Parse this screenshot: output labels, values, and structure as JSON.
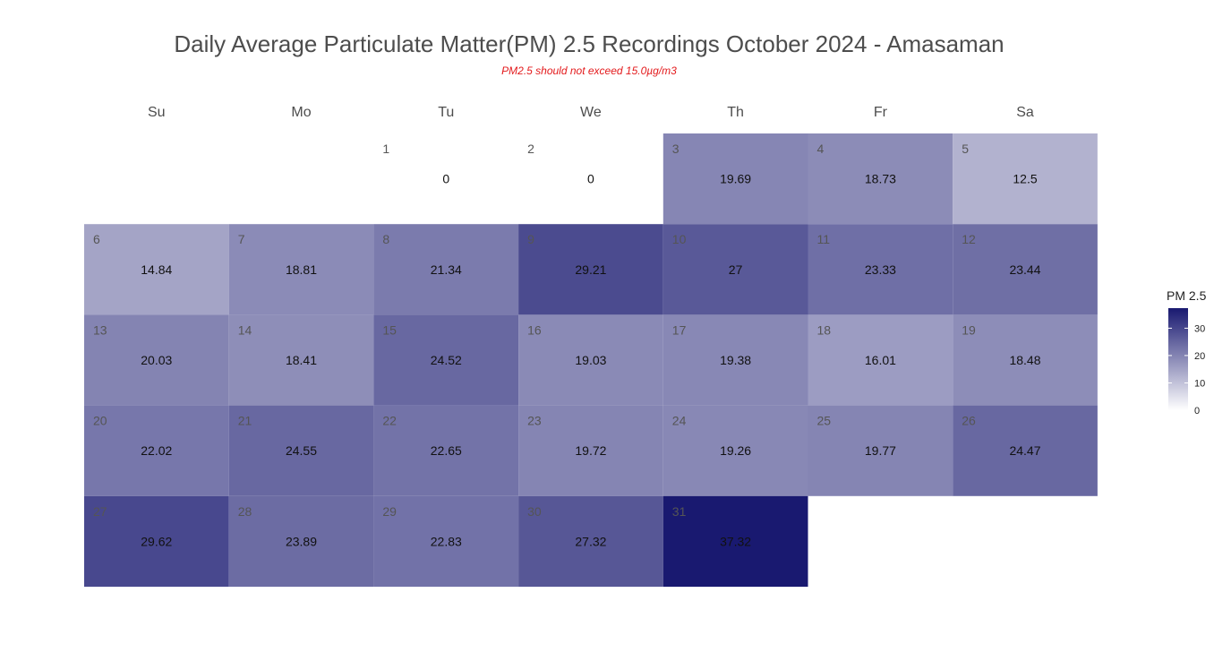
{
  "chart_data": {
    "type": "heatmap",
    "title": "Daily Average Particulate Matter(PM) 2.5 Recordings October 2024 -  Amasaman",
    "subtitle": "PM2.5 should not exceed 15.0µg/m3",
    "weekdays": [
      "Su",
      "Mo",
      "Tu",
      "We",
      "Th",
      "Fr",
      "Sa"
    ],
    "first_weekday_index": 2,
    "days": [
      1,
      2,
      3,
      4,
      5,
      6,
      7,
      8,
      9,
      10,
      11,
      12,
      13,
      14,
      15,
      16,
      17,
      18,
      19,
      20,
      21,
      22,
      23,
      24,
      25,
      26,
      27,
      28,
      29,
      30,
      31
    ],
    "values": [
      0,
      0,
      19.69,
      18.73,
      12.5,
      14.84,
      18.81,
      21.34,
      29.21,
      27,
      23.33,
      23.44,
      20.03,
      18.41,
      24.52,
      19.03,
      19.38,
      16.01,
      18.48,
      22.02,
      24.55,
      22.65,
      19.72,
      19.26,
      19.77,
      24.47,
      29.62,
      23.89,
      22.83,
      27.32,
      37.32
    ],
    "value_labels": [
      "0",
      "0",
      "19.69",
      "18.73",
      "12.5",
      "14.84",
      "18.81",
      "21.34",
      "29.21",
      "27",
      "23.33",
      "23.44",
      "20.03",
      "18.41",
      "24.52",
      "19.03",
      "19.38",
      "16.01",
      "18.48",
      "22.02",
      "24.55",
      "22.65",
      "19.72",
      "19.26",
      "19.77",
      "24.47",
      "29.62",
      "23.89",
      "22.83",
      "27.32",
      "37.32"
    ],
    "legend": {
      "title": "PM 2.5",
      "ticks": [
        0,
        10,
        20,
        30
      ],
      "tick_labels": [
        "0",
        "10",
        "20",
        "30"
      ],
      "range": [
        0,
        37.32
      ],
      "placement": "right"
    },
    "colors": {
      "low": "#ffffff",
      "high": "#191970"
    }
  }
}
